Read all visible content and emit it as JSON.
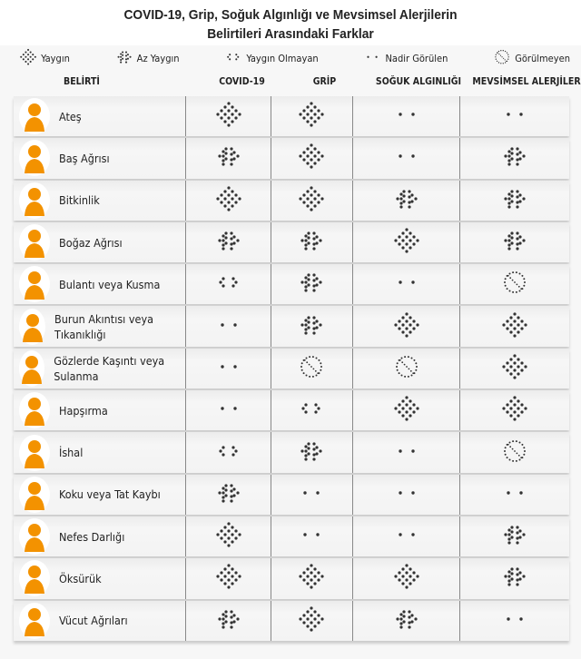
{
  "title_line1": "COVID-19, Grip, Soğuk Algınlığı ve Mevsimsel Alerjilerin",
  "title_line2": "Belirtileri Arasındaki Farklar",
  "legend": [
    {
      "code": "Y",
      "label": "Yaygın"
    },
    {
      "code": "A",
      "label": "Az Yaygın"
    },
    {
      "code": "O",
      "label": "Yaygın Olmayan"
    },
    {
      "code": "N",
      "label": "Nadir Görülen"
    },
    {
      "code": "G",
      "label": "Görülmeyen"
    }
  ],
  "headers": [
    "BELİRTİ",
    "COVID-19",
    "GRİP",
    "SOĞUK ALGINLIĞI",
    "MEVSİMSEL ALERJİLER"
  ],
  "colors": {
    "accent": "#f39200",
    "dot": "#333333"
  },
  "rows": [
    {
      "symptom": "Ateş",
      "values": [
        "Y",
        "Y",
        "N",
        "N"
      ]
    },
    {
      "symptom": "Baş Ağrısı",
      "values": [
        "A",
        "Y",
        "N",
        "A"
      ]
    },
    {
      "symptom": "Bitkinlik",
      "values": [
        "Y",
        "Y",
        "A",
        "A"
      ]
    },
    {
      "symptom": "Boğaz Ağrısı",
      "values": [
        "A",
        "A",
        "Y",
        "A"
      ]
    },
    {
      "symptom": "Bulantı veya Kusma",
      "values": [
        "O",
        "A",
        "N",
        "G"
      ]
    },
    {
      "symptom": "Burun Akıntısı veya Tıkanıklığı",
      "values": [
        "N",
        "A",
        "Y",
        "Y"
      ]
    },
    {
      "symptom": "Gözlerde Kaşıntı veya Sulanma",
      "values": [
        "N",
        "G",
        "G",
        "Y"
      ]
    },
    {
      "symptom": "Hapşırma",
      "values": [
        "N",
        "O",
        "Y",
        "Y"
      ]
    },
    {
      "symptom": "İshal",
      "values": [
        "O",
        "A",
        "N",
        "G"
      ]
    },
    {
      "symptom": "Koku veya Tat Kaybı",
      "values": [
        "A",
        "N",
        "N",
        "N"
      ]
    },
    {
      "symptom": "Nefes Darlığı",
      "values": [
        "Y",
        "N",
        "N",
        "A"
      ]
    },
    {
      "symptom": "Öksürük",
      "values": [
        "Y",
        "Y",
        "Y",
        "A"
      ]
    },
    {
      "symptom": "Vücut Ağrıları",
      "values": [
        "A",
        "Y",
        "A",
        "N"
      ]
    }
  ]
}
